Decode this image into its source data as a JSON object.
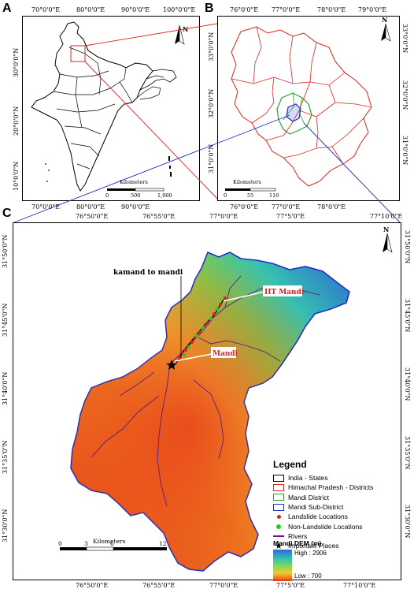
{
  "panels": {
    "a": {
      "letter": "A",
      "top_ticks": [
        "70°0'0\"E",
        "80°0'0\"E",
        "90°0'0\"E",
        "100°0'0\"E"
      ],
      "bottom_ticks": [
        "70°0'0\"E",
        "80°0'0\"E",
        "90°0'0\"E"
      ],
      "left_ticks": [
        "30°0'0\"N",
        "20°0'0\"N",
        "10°0'0\"N"
      ],
      "scale_title": "Kilometers",
      "scale_labels": [
        "0",
        "500",
        "1,000"
      ],
      "north": "N"
    },
    "b": {
      "letter": "B",
      "top_ticks": [
        "76°0'0\"E",
        "77°0'0\"E",
        "78°0'0\"E",
        "79°0'0\"E"
      ],
      "bottom_ticks": [
        "76°0'0\"E",
        "77°0'0\"E",
        "78°0'0\"E"
      ],
      "right_ticks": [
        "33°0'0\"N",
        "32°0'0\"N",
        "31°0'0\"N"
      ],
      "left_ticks": [
        "33°0'0\"N",
        "32°0'0\"N",
        "31°0'0\"N"
      ],
      "scale_title": "Kilometers",
      "scale_labels": [
        "0",
        "55",
        "110"
      ],
      "north": "N"
    },
    "c": {
      "letter": "C",
      "bottom_extra_tick": "77°10'0\"E",
      "top_ticks": [
        "76°50'0\"E",
        "76°55'0\"E",
        "77°0'0\"E",
        "77°5'0\"E",
        "77°10'0\"E"
      ],
      "bottom_ticks": [
        "76°50'0\"E",
        "76°55'0\"E",
        "77°0'0\"E",
        "77°5'0\"E",
        "77°10'0\"E"
      ],
      "left_ticks": [
        "31°50'0\"N",
        "31°45'0\"N",
        "31°40'0\"N",
        "31°35'0\"N",
        "31°30'0\"N"
      ],
      "right_ticks": [
        "31°50'0\"N",
        "31°45'0\"N",
        "31°40'0\"N",
        "31°35'0\"N",
        "31°30'0\"N"
      ],
      "labels": {
        "kamand": "kamand to mandi",
        "iit": "IIT Mandi",
        "mandi": "Mandi"
      },
      "scale_title": "Kilometers",
      "scale_labels": [
        "0",
        "3",
        "6",
        "12"
      ],
      "north": "N"
    }
  },
  "legend": {
    "title": "Legend",
    "items": [
      {
        "label": "India - States",
        "color": "#000000"
      },
      {
        "label": "Himachal Pradesh - Districts",
        "color": "#e02020"
      },
      {
        "label": "Mandi District",
        "color": "#2ea02e"
      },
      {
        "label": "Mandi Sub-District",
        "color": "#2030c0"
      },
      {
        "label": "Landslide Locations",
        "color": "#e02020"
      },
      {
        "label": "Non-Landslide Locations",
        "color": "#22cc22"
      },
      {
        "label": "Rivers",
        "color": "#6a1a8a"
      },
      {
        "label": "Important Places",
        "color": "#000000"
      }
    ],
    "dem_title": "Mandi DEM (m)",
    "dem_high": "High : 2906",
    "dem_low": "Low : 700"
  }
}
